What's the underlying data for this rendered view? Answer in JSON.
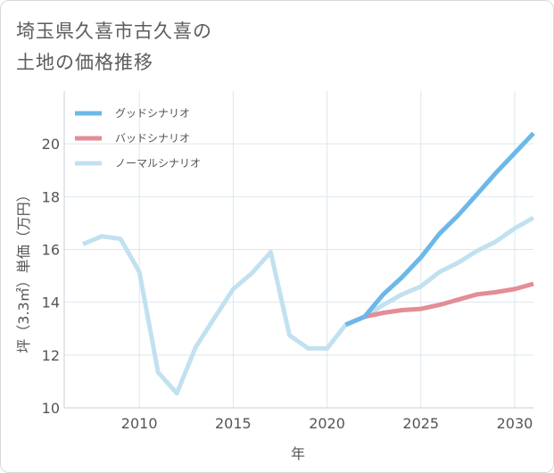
{
  "page": {
    "title_line1": "埼玉県久喜市古久喜の",
    "title_line2": "土地の価格推移"
  },
  "chart_data": {
    "type": "line",
    "title": "埼玉県久喜市古久喜の土地の価格推移",
    "xlabel": "年",
    "ylabel": "坪（3.3㎡）単価（万円）",
    "xlim": [
      2006,
      2031
    ],
    "ylim": [
      10,
      22
    ],
    "xticks": [
      2010,
      2015,
      2020,
      2025,
      2030
    ],
    "yticks": [
      10,
      12,
      14,
      16,
      18,
      20
    ],
    "grid": true,
    "legend_position": "top-left",
    "series": [
      {
        "name": "グッドシナリオ",
        "color": "#6cb8e8",
        "x": [
          2021,
          2022,
          2023,
          2024,
          2025,
          2026,
          2027,
          2028,
          2029,
          2030,
          2031
        ],
        "values": [
          13.15,
          13.45,
          14.3,
          14.95,
          15.7,
          16.6,
          17.3,
          18.1,
          18.9,
          19.65,
          20.4
        ]
      },
      {
        "name": "バッドシナリオ",
        "color": "#e38d96",
        "x": [
          2021,
          2022,
          2023,
          2024,
          2025,
          2026,
          2027,
          2028,
          2029,
          2030,
          2031
        ],
        "values": [
          13.15,
          13.45,
          13.6,
          13.7,
          13.75,
          13.9,
          14.1,
          14.3,
          14.38,
          14.5,
          14.7
        ]
      },
      {
        "name": "ノーマルシナリオ",
        "color": "#c2e1f0",
        "x": [
          2007,
          2008,
          2009,
          2010,
          2011,
          2012,
          2013,
          2014,
          2015,
          2016,
          2017,
          2018,
          2019,
          2020,
          2021,
          2022,
          2023,
          2024,
          2025,
          2026,
          2027,
          2028,
          2029,
          2030,
          2031
        ],
        "values": [
          16.2,
          16.5,
          16.4,
          15.15,
          11.35,
          10.55,
          12.3,
          13.4,
          14.5,
          15.1,
          15.9,
          12.75,
          12.25,
          12.25,
          13.15,
          13.45,
          13.9,
          14.3,
          14.6,
          15.15,
          15.5,
          15.95,
          16.3,
          16.8,
          17.2
        ]
      }
    ]
  }
}
